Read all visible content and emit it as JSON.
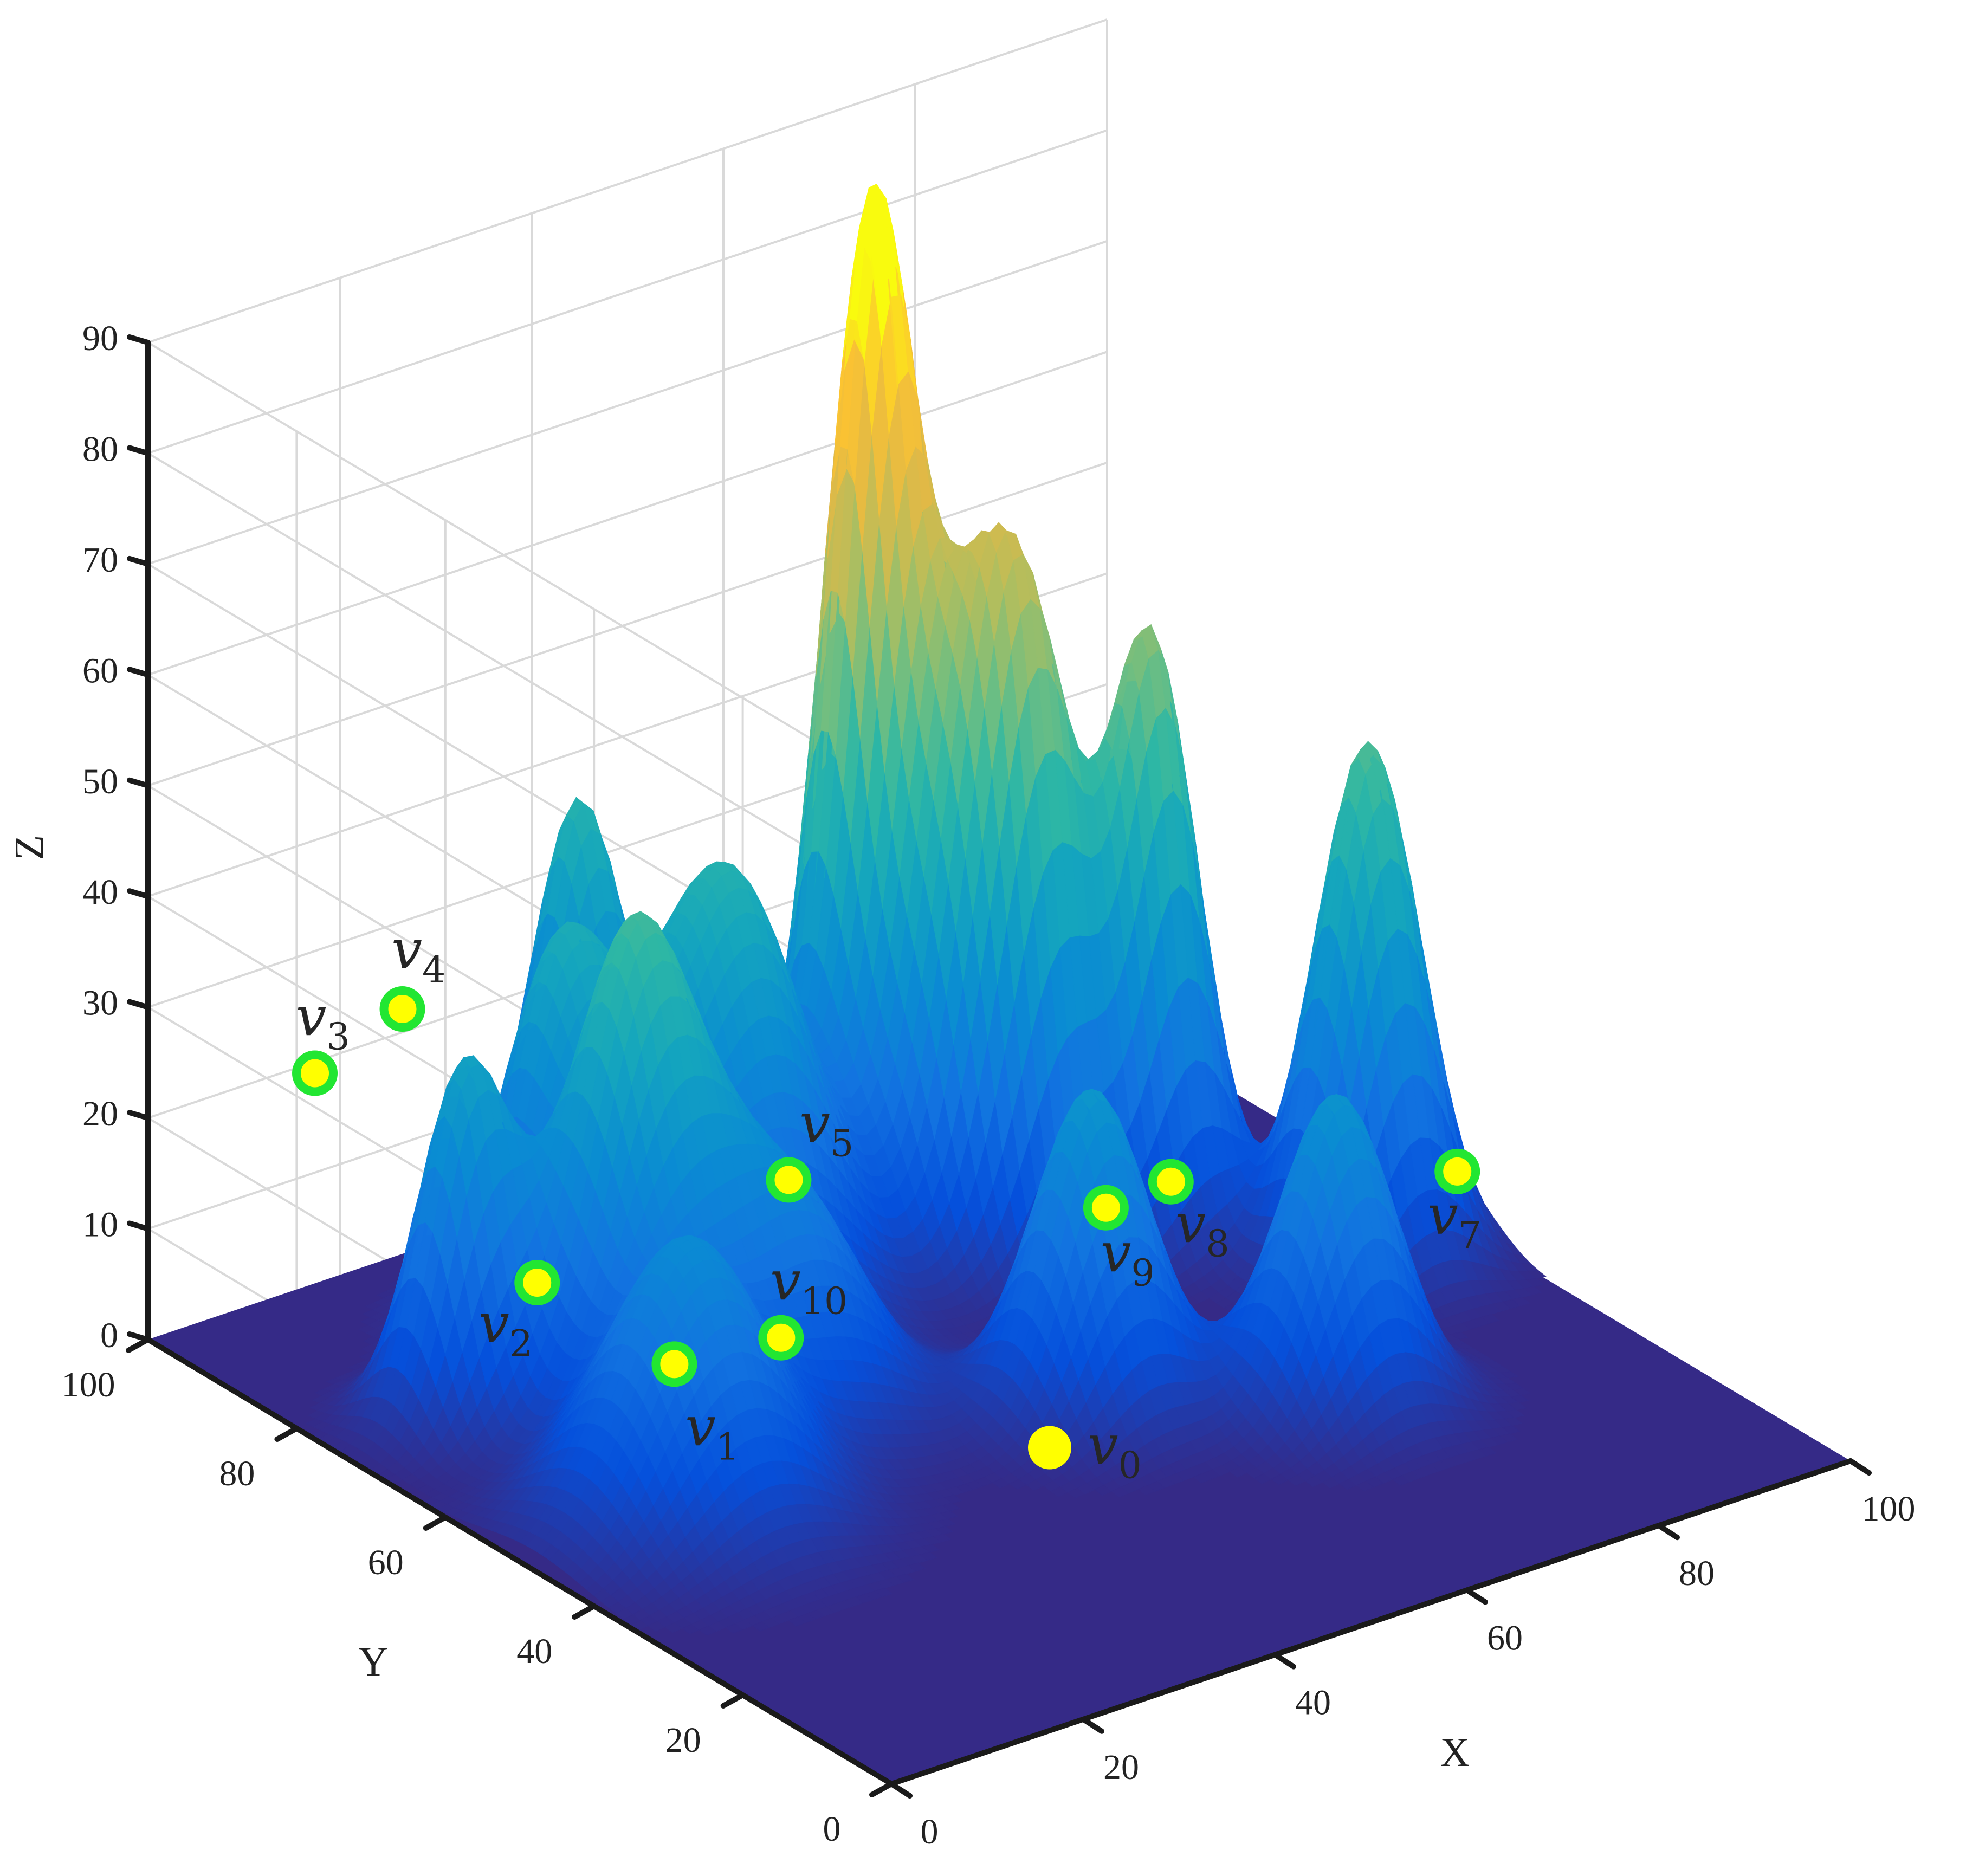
{
  "chart_data": {
    "type": "surface",
    "xlabel": "X",
    "ylabel": "Y",
    "zlabel": "Z",
    "xlim": [
      0,
      100
    ],
    "ylim": [
      0,
      100
    ],
    "zlim": [
      0,
      90
    ],
    "x_ticks": [
      "0",
      "20",
      "40",
      "60",
      "80",
      "100"
    ],
    "y_ticks": [
      "0",
      "20",
      "40",
      "60",
      "80",
      "100"
    ],
    "z_ticks": [
      "0",
      "10",
      "20",
      "30",
      "40",
      "50",
      "60",
      "70",
      "80",
      "90"
    ],
    "grid": true,
    "colormap": "parula",
    "peaks": [
      {
        "x": 24,
        "y": 66,
        "height": 41,
        "sigma": 5.5
      },
      {
        "x": 28,
        "y": 81,
        "height": 32,
        "sigma": 5.0
      },
      {
        "x": 12,
        "y": 73,
        "height": 31,
        "sigma": 4.0
      },
      {
        "x": 40,
        "y": 94,
        "height": 37,
        "sigma": 4.0
      },
      {
        "x": 16,
        "y": 48,
        "height": 25,
        "sigma": 7.0
      },
      {
        "x": 43,
        "y": 78,
        "height": 39,
        "sigma": 7.0
      },
      {
        "x": 62,
        "y": 83,
        "height": 84,
        "sigma": 4.0
      },
      {
        "x": 65,
        "y": 74,
        "height": 48,
        "sigma": 5.0
      },
      {
        "x": 34,
        "y": 58,
        "height": 20,
        "sigma": 6.5
      },
      {
        "x": 69,
        "y": 69,
        "height": 35,
        "sigma": 4.0
      },
      {
        "x": 79,
        "y": 67,
        "height": 53,
        "sigma": 4.0
      },
      {
        "x": 55,
        "y": 44,
        "height": 29,
        "sigma": 5.0
      },
      {
        "x": 90,
        "y": 52,
        "height": 47,
        "sigma": 4.5
      },
      {
        "x": 72,
        "y": 33,
        "height": 28,
        "sigma": 5.0
      }
    ],
    "points": [
      {
        "name": "v0",
        "x": 32,
        "y": 20,
        "z": 13,
        "style": "start"
      },
      {
        "name": "v1",
        "x": 20,
        "y": 55,
        "z": 10,
        "style": "waypoint"
      },
      {
        "name": "v2",
        "x": 15,
        "y": 67,
        "z": 14,
        "style": "waypoint"
      },
      {
        "name": "v3",
        "x": 5,
        "y": 84,
        "z": 29,
        "style": "waypoint"
      },
      {
        "name": "v4",
        "x": 18,
        "y": 89,
        "z": 29,
        "style": "waypoint"
      },
      {
        "name": "v5",
        "x": 42,
        "y": 68,
        "z": 15,
        "style": "waypoint"
      },
      {
        "name": "v7",
        "x": 90,
        "y": 40,
        "z": 13,
        "style": "waypoint"
      },
      {
        "name": "v8",
        "x": 71,
        "y": 54,
        "z": 12,
        "style": "waypoint"
      },
      {
        "name": "v9",
        "x": 65,
        "y": 55,
        "z": 11,
        "style": "waypoint"
      },
      {
        "name": "v10",
        "x": 35,
        "y": 60,
        "z": 6,
        "style": "waypoint"
      }
    ],
    "colors": {
      "floor": "#352A87",
      "waypoint_fill": "#FFFF00",
      "waypoint_ring": "#22E632",
      "start_point": "#FFFF00"
    }
  }
}
